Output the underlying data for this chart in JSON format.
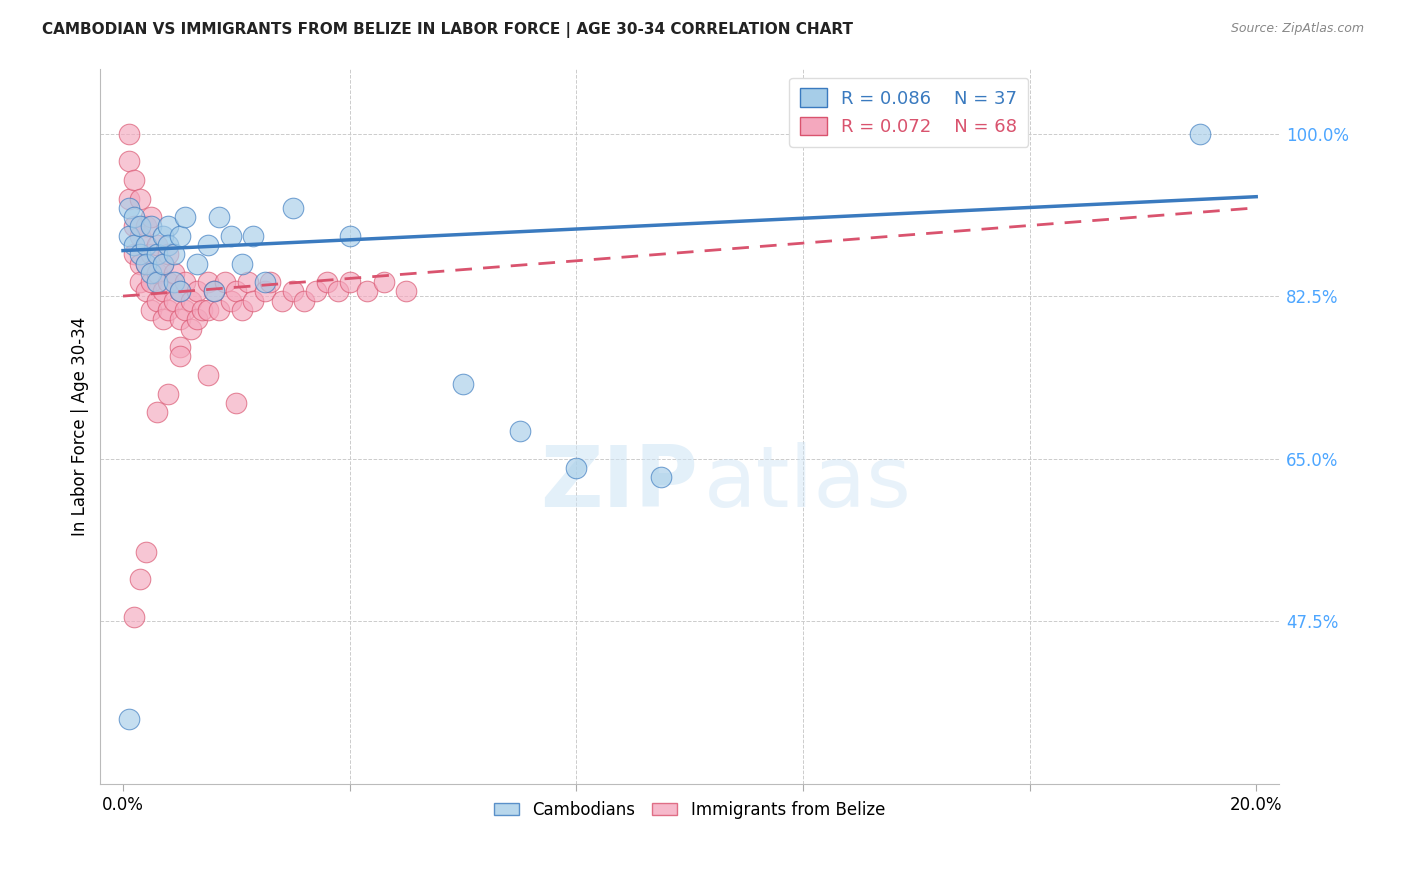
{
  "title": "CAMBODIAN VS IMMIGRANTS FROM BELIZE IN LABOR FORCE | AGE 30-34 CORRELATION CHART",
  "source": "Source: ZipAtlas.com",
  "ylabel": "In Labor Force | Age 30-34",
  "xlim": [
    0.0,
    0.2
  ],
  "ylim": [
    0.3,
    1.07
  ],
  "yticks": [
    0.475,
    0.65,
    0.825,
    1.0
  ],
  "ytick_labels": [
    "47.5%",
    "65.0%",
    "82.5%",
    "100.0%"
  ],
  "xticks": [
    0.0,
    0.04,
    0.08,
    0.12,
    0.16,
    0.2
  ],
  "xtick_labels": [
    "0.0%",
    "",
    "",
    "",
    "",
    "20.0%"
  ],
  "blue_color": "#a6cde8",
  "pink_color": "#f4a8be",
  "blue_edge_color": "#3a7abf",
  "pink_edge_color": "#d9536e",
  "blue_line_color": "#3a7abf",
  "pink_line_color": "#d9536e",
  "blue_label": "R = 0.086",
  "blue_n": "N = 37",
  "pink_label": "R = 0.072",
  "pink_n": "N = 68",
  "right_tick_color": "#4da6ff",
  "cambodian_x": [
    0.001,
    0.001,
    0.002,
    0.002,
    0.003,
    0.003,
    0.004,
    0.004,
    0.005,
    0.005,
    0.006,
    0.006,
    0.007,
    0.007,
    0.008,
    0.008,
    0.009,
    0.009,
    0.01,
    0.01,
    0.011,
    0.013,
    0.015,
    0.016,
    0.017,
    0.019,
    0.021,
    0.023,
    0.025,
    0.03,
    0.04,
    0.06,
    0.07,
    0.08,
    0.095,
    0.19,
    0.001
  ],
  "cambodian_y": [
    0.89,
    0.92,
    0.88,
    0.91,
    0.87,
    0.9,
    0.88,
    0.86,
    0.9,
    0.85,
    0.87,
    0.84,
    0.89,
    0.86,
    0.9,
    0.88,
    0.84,
    0.87,
    0.89,
    0.83,
    0.91,
    0.86,
    0.88,
    0.83,
    0.91,
    0.89,
    0.86,
    0.89,
    0.84,
    0.92,
    0.89,
    0.73,
    0.68,
    0.64,
    0.63,
    1.0,
    0.37
  ],
  "belize_x": [
    0.001,
    0.001,
    0.001,
    0.002,
    0.002,
    0.002,
    0.003,
    0.003,
    0.003,
    0.003,
    0.004,
    0.004,
    0.004,
    0.005,
    0.005,
    0.005,
    0.005,
    0.006,
    0.006,
    0.006,
    0.007,
    0.007,
    0.007,
    0.008,
    0.008,
    0.008,
    0.009,
    0.009,
    0.01,
    0.01,
    0.01,
    0.011,
    0.011,
    0.012,
    0.012,
    0.013,
    0.013,
    0.014,
    0.015,
    0.015,
    0.016,
    0.017,
    0.018,
    0.019,
    0.02,
    0.021,
    0.022,
    0.023,
    0.025,
    0.026,
    0.028,
    0.03,
    0.032,
    0.034,
    0.036,
    0.038,
    0.04,
    0.043,
    0.046,
    0.05,
    0.02,
    0.015,
    0.01,
    0.008,
    0.006,
    0.004,
    0.003,
    0.002
  ],
  "belize_y": [
    1.0,
    0.97,
    0.93,
    0.95,
    0.9,
    0.87,
    0.93,
    0.89,
    0.86,
    0.84,
    0.9,
    0.86,
    0.83,
    0.91,
    0.87,
    0.84,
    0.81,
    0.88,
    0.85,
    0.82,
    0.86,
    0.83,
    0.8,
    0.87,
    0.84,
    0.81,
    0.85,
    0.82,
    0.83,
    0.8,
    0.77,
    0.84,
    0.81,
    0.82,
    0.79,
    0.83,
    0.8,
    0.81,
    0.84,
    0.81,
    0.83,
    0.81,
    0.84,
    0.82,
    0.83,
    0.81,
    0.84,
    0.82,
    0.83,
    0.84,
    0.82,
    0.83,
    0.82,
    0.83,
    0.84,
    0.83,
    0.84,
    0.83,
    0.84,
    0.83,
    0.71,
    0.74,
    0.76,
    0.72,
    0.7,
    0.55,
    0.52,
    0.48
  ],
  "blue_line_x": [
    0.0,
    0.2
  ],
  "blue_line_y": [
    0.874,
    0.932
  ],
  "pink_line_x": [
    0.0,
    0.2
  ],
  "pink_line_y": [
    0.825,
    0.92
  ]
}
